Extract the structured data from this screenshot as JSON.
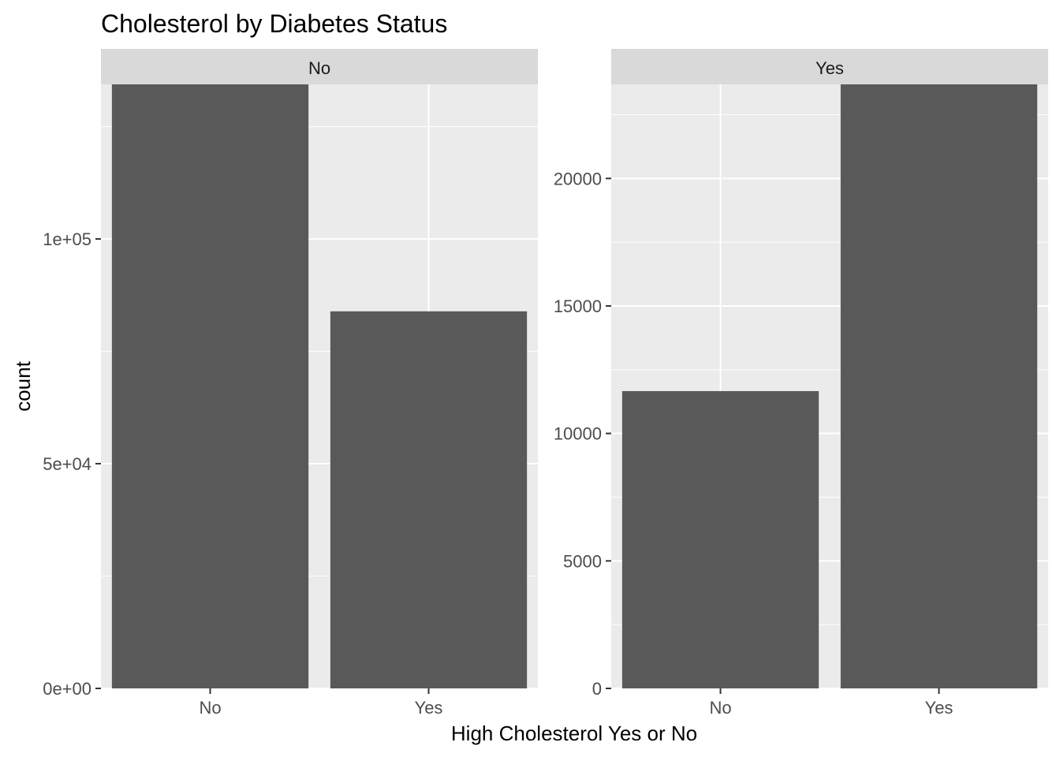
{
  "chart_data": {
    "type": "bar",
    "title": "Cholesterol by Diabetes Status",
    "xlabel": "High Cholesterol Yes or No",
    "ylabel": "count",
    "facets": [
      {
        "strip": "No",
        "categories": [
          "No",
          "Yes"
        ],
        "values": [
          134400,
          83900
        ],
        "ylim": [
          0,
          134400
        ],
        "y_ticks": [
          0,
          50000,
          100000
        ],
        "y_tick_labels": [
          "0e+00",
          "5e+04",
          "1e+05"
        ]
      },
      {
        "strip": "Yes",
        "categories": [
          "No",
          "Yes"
        ],
        "values": [
          11660,
          23690
        ],
        "ylim": [
          0,
          23690
        ],
        "y_ticks": [
          0,
          5000,
          10000,
          15000,
          20000
        ],
        "y_tick_labels": [
          "0",
          "5000",
          "10000",
          "15000",
          "20000"
        ]
      }
    ],
    "grid": true,
    "legend": "none"
  },
  "colors": {
    "panel_background": "#ebebeb",
    "strip_background": "#d9d9d9",
    "bar_fill": "#595959",
    "grid_major": "#ffffff",
    "tick_text": "#4d4d4d"
  }
}
